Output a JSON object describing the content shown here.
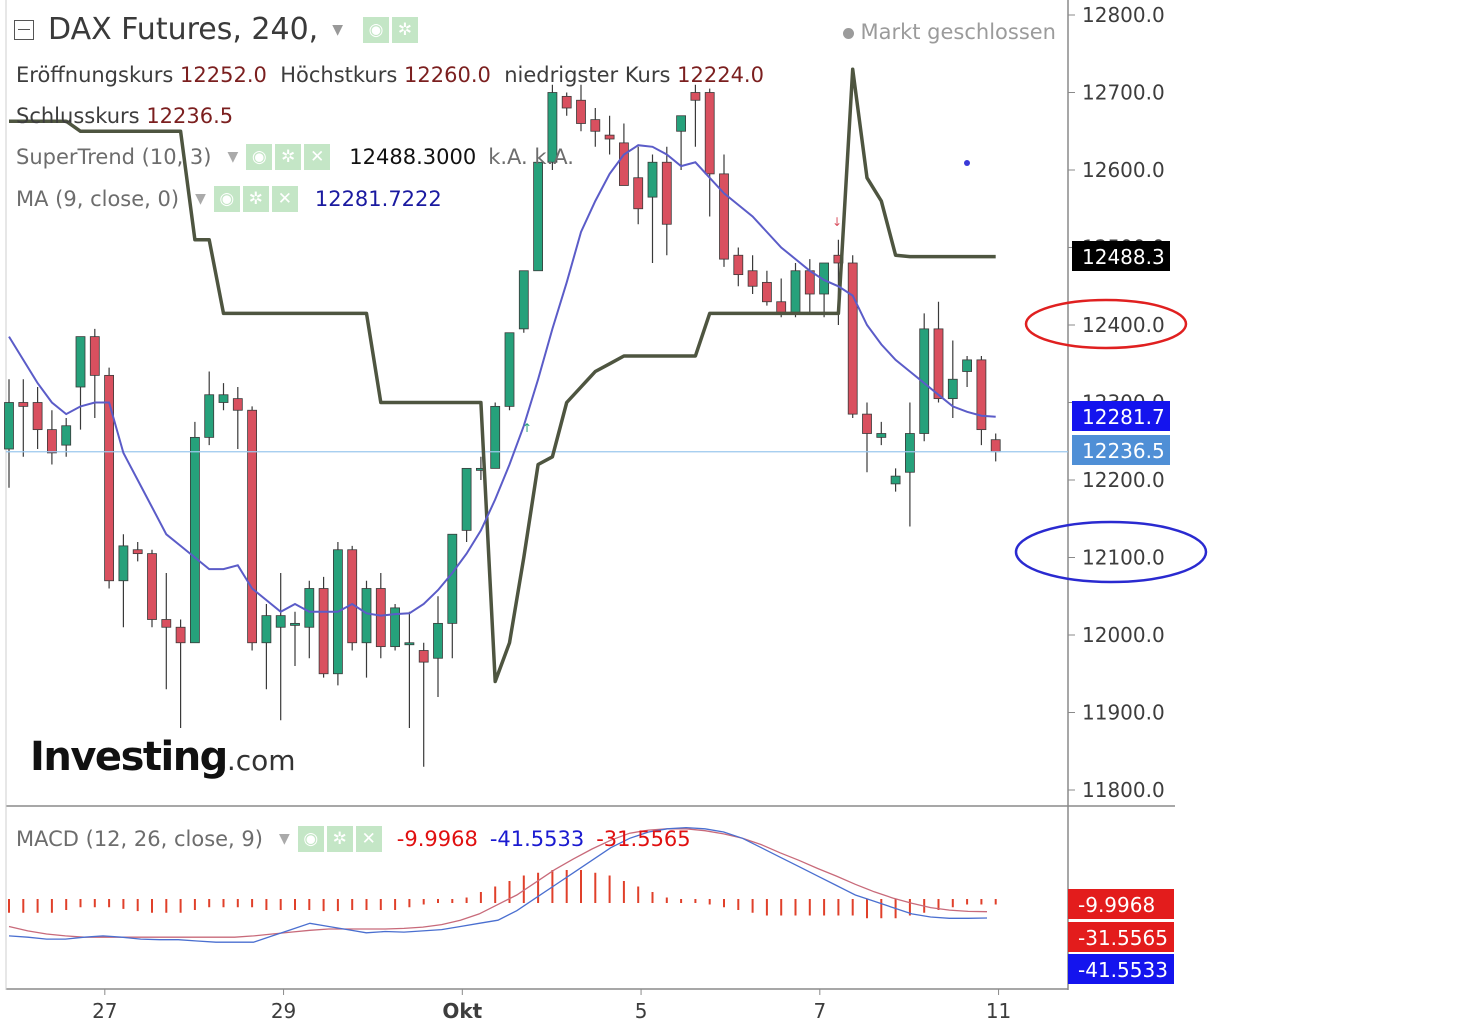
{
  "header": {
    "title": "DAX Futures, 240,",
    "status": "Markt geschlossen",
    "ohlc": [
      {
        "label": "Eröffnungskurs",
        "value": "12252.0"
      },
      {
        "label": "Höchstkurs",
        "value": "12260.0"
      },
      {
        "label": "niedrigster Kurs",
        "value": "12224.0"
      },
      {
        "label": "Schlusskurs",
        "value": "12236.5"
      }
    ],
    "supertrend": {
      "label": "SuperTrend (10, 3)",
      "value": "12488.3000",
      "extra": "k.A. k.A."
    },
    "ma": {
      "label": "MA (9, close, 0)",
      "value": "12281.7222"
    },
    "macd": {
      "label": "MACD (12, 26, close, 9)",
      "hist": "-9.9968",
      "macd": "-41.5533",
      "signal": "-31.5565"
    }
  },
  "logo": {
    "brand": "Investing",
    "suffix": ".com"
  },
  "colors": {
    "up": "#26a17b",
    "down": "#d9505f",
    "supertrend": "#4e5540",
    "ma": "#5b5cc8",
    "macd_line": "#4a6fd0",
    "signal_line": "#c86a7a",
    "hist": "#e0402a",
    "close_line": "#9cc8ee",
    "text": "#3d3d3d",
    "price_label_ma": "#1414ee",
    "price_label_close": "#4f8fd6"
  },
  "chart_data": {
    "type": "candlestick",
    "title": "DAX Futures, 240,",
    "ylim": [
      11750,
      12830
    ],
    "yticks": [
      "12800.0",
      "12700.0",
      "12600.0",
      "12500.0",
      "12400.0",
      "12300.0",
      "12200.0",
      "12100.0",
      "12000.0",
      "11900.0",
      "11800.0"
    ],
    "xticks": [
      {
        "label": "27",
        "index": 5
      },
      {
        "label": "29",
        "index": 15
      },
      {
        "label": "Okt",
        "index": 25
      },
      {
        "label": "5",
        "index": 35
      },
      {
        "label": "7",
        "index": 45
      },
      {
        "label": "11",
        "index": 55
      }
    ],
    "candles": [
      {
        "o": 12240,
        "h": 12330,
        "l": 12190,
        "c": 12300
      },
      {
        "o": 12300,
        "h": 12330,
        "l": 12230,
        "c": 12295
      },
      {
        "o": 12300,
        "h": 12320,
        "l": 12240,
        "c": 12265
      },
      {
        "o": 12265,
        "h": 12290,
        "l": 12220,
        "c": 12235
      },
      {
        "o": 12245,
        "h": 12280,
        "l": 12230,
        "c": 12270
      },
      {
        "o": 12320,
        "h": 12385,
        "l": 12265,
        "c": 12385
      },
      {
        "o": 12385,
        "h": 12395,
        "l": 12280,
        "c": 12335
      },
      {
        "o": 12335,
        "h": 12345,
        "l": 12060,
        "c": 12070
      },
      {
        "o": 12070,
        "h": 12130,
        "l": 12010,
        "c": 12115
      },
      {
        "o": 12110,
        "h": 12120,
        "l": 12095,
        "c": 12105
      },
      {
        "o": 12105,
        "h": 12110,
        "l": 12010,
        "c": 12020
      },
      {
        "o": 12020,
        "h": 12080,
        "l": 11930,
        "c": 12010
      },
      {
        "o": 12010,
        "h": 12020,
        "l": 11880,
        "c": 11990
      },
      {
        "o": 11990,
        "h": 12275,
        "l": 11990,
        "c": 12255
      },
      {
        "o": 12255,
        "h": 12340,
        "l": 12245,
        "c": 12310
      },
      {
        "o": 12300,
        "h": 12325,
        "l": 12290,
        "c": 12310
      },
      {
        "o": 12305,
        "h": 12320,
        "l": 12240,
        "c": 12290
      },
      {
        "o": 12290,
        "h": 12295,
        "l": 11980,
        "c": 11990
      },
      {
        "o": 11990,
        "h": 12040,
        "l": 11930,
        "c": 12025
      },
      {
        "o": 12010,
        "h": 12080,
        "l": 11890,
        "c": 12025
      },
      {
        "o": 12015,
        "h": 12030,
        "l": 11960,
        "c": 12015
      },
      {
        "o": 12010,
        "h": 12070,
        "l": 11970,
        "c": 12060
      },
      {
        "o": 12060,
        "h": 12075,
        "l": 11945,
        "c": 11950
      },
      {
        "o": 11950,
        "h": 12120,
        "l": 11935,
        "c": 12110
      },
      {
        "o": 12110,
        "h": 12115,
        "l": 11980,
        "c": 11990
      },
      {
        "o": 11990,
        "h": 12070,
        "l": 11945,
        "c": 12060
      },
      {
        "o": 12060,
        "h": 12080,
        "l": 11970,
        "c": 11985
      },
      {
        "o": 11985,
        "h": 12040,
        "l": 11980,
        "c": 12035
      },
      {
        "o": 11990,
        "h": 12030,
        "l": 11880,
        "c": 11990
      },
      {
        "o": 11980,
        "h": 11990,
        "l": 11830,
        "c": 11965
      },
      {
        "o": 11970,
        "h": 12050,
        "l": 11920,
        "c": 12015
      },
      {
        "o": 12015,
        "h": 12130,
        "l": 11970,
        "c": 12130
      },
      {
        "o": 12135,
        "h": 12215,
        "l": 12120,
        "c": 12215
      },
      {
        "o": 12215,
        "h": 12230,
        "l": 12200,
        "c": 12215
      },
      {
        "o": 12215,
        "h": 12300,
        "l": 12215,
        "c": 12295
      },
      {
        "o": 12295,
        "h": 12390,
        "l": 12290,
        "c": 12390
      },
      {
        "o": 12395,
        "h": 12470,
        "l": 12390,
        "c": 12470
      },
      {
        "o": 12470,
        "h": 12610,
        "l": 12470,
        "c": 12610
      },
      {
        "o": 12610,
        "h": 12710,
        "l": 12600,
        "c": 12700
      },
      {
        "o": 12695,
        "h": 12700,
        "l": 12670,
        "c": 12680
      },
      {
        "o": 12690,
        "h": 12710,
        "l": 12650,
        "c": 12660
      },
      {
        "o": 12665,
        "h": 12680,
        "l": 12630,
        "c": 12650
      },
      {
        "o": 12645,
        "h": 12670,
        "l": 12620,
        "c": 12640
      },
      {
        "o": 12635,
        "h": 12660,
        "l": 12580,
        "c": 12580
      },
      {
        "o": 12590,
        "h": 12630,
        "l": 12530,
        "c": 12550
      },
      {
        "o": 12565,
        "h": 12620,
        "l": 12480,
        "c": 12610
      },
      {
        "o": 12610,
        "h": 12630,
        "l": 12490,
        "c": 12530
      },
      {
        "o": 12650,
        "h": 12670,
        "l": 12600,
        "c": 12670
      },
      {
        "o": 12700,
        "h": 12710,
        "l": 12630,
        "c": 12690
      },
      {
        "o": 12700,
        "h": 12705,
        "l": 12540,
        "c": 12595
      },
      {
        "o": 12595,
        "h": 12620,
        "l": 12475,
        "c": 12485
      },
      {
        "o": 12490,
        "h": 12500,
        "l": 12450,
        "c": 12465
      },
      {
        "o": 12470,
        "h": 12490,
        "l": 12440,
        "c": 12450
      },
      {
        "o": 12455,
        "h": 12470,
        "l": 12425,
        "c": 12430
      },
      {
        "o": 12430,
        "h": 12460,
        "l": 12410,
        "c": 12415
      },
      {
        "o": 12415,
        "h": 12480,
        "l": 12410,
        "c": 12470
      },
      {
        "o": 12470,
        "h": 12485,
        "l": 12415,
        "c": 12440
      },
      {
        "o": 12440,
        "h": 12480,
        "l": 12410,
        "c": 12480
      },
      {
        "o": 12490,
        "h": 12510,
        "l": 12400,
        "c": 12480
      },
      {
        "o": 12480,
        "h": 12490,
        "l": 12280,
        "c": 12285
      },
      {
        "o": 12285,
        "h": 12300,
        "l": 12210,
        "c": 12260
      },
      {
        "o": 12255,
        "h": 12275,
        "l": 12245,
        "c": 12260
      },
      {
        "o": 12195,
        "h": 12215,
        "l": 12185,
        "c": 12205
      },
      {
        "o": 12210,
        "h": 12300,
        "l": 12140,
        "c": 12260
      },
      {
        "o": 12260,
        "h": 12415,
        "l": 12250,
        "c": 12395
      },
      {
        "o": 12395,
        "h": 12430,
        "l": 12300,
        "c": 12305
      },
      {
        "o": 12305,
        "h": 12380,
        "l": 12280,
        "c": 12330
      },
      {
        "o": 12340,
        "h": 12360,
        "l": 12320,
        "c": 12355
      },
      {
        "o": 12355,
        "h": 12360,
        "l": 12245,
        "c": 12265
      },
      {
        "o": 12252,
        "h": 12260,
        "l": 12224,
        "c": 12236.5
      }
    ],
    "supertrend": [
      12663,
      12663,
      12663,
      12663,
      12663,
      12650,
      12650,
      12650,
      12650,
      12650,
      12650,
      12650,
      12650,
      12510,
      12510,
      12415,
      12415,
      12415,
      12415,
      12415,
      12415,
      12415,
      12415,
      12415,
      12415,
      12415,
      12300,
      12300,
      12300,
      12300,
      12300,
      12300,
      12300,
      12300,
      11940,
      11990,
      12100,
      12220,
      12230,
      12300,
      12320,
      12340,
      12350,
      12360,
      12360,
      12360,
      12360,
      12360,
      12360,
      12415,
      12415,
      12415,
      12415,
      12415,
      12415,
      12415,
      12415,
      12415,
      12415,
      12730,
      12590,
      12560,
      12490,
      12488.3,
      12488.3,
      12488.3,
      12488.3,
      12488.3,
      12488.3,
      12488.3
    ],
    "ma": [
      12385,
      12355,
      12325,
      12300,
      12285,
      12295,
      12300,
      12300,
      12235,
      12200,
      12165,
      12130,
      12115,
      12100,
      12085,
      12085,
      12090,
      12060,
      12045,
      12030,
      12040,
      12030,
      12030,
      12030,
      12040,
      12028,
      12025,
      12027,
      12028,
      12040,
      12058,
      12080,
      12105,
      12135,
      12175,
      12220,
      12270,
      12330,
      12395,
      12455,
      12520,
      12560,
      12595,
      12620,
      12632,
      12630,
      12620,
      12605,
      12610,
      12590,
      12570,
      12555,
      12540,
      12520,
      12500,
      12485,
      12470,
      12458,
      12450,
      12438,
      12400,
      12375,
      12355,
      12340,
      12325,
      12310,
      12295,
      12288,
      12283,
      12281.7
    ],
    "macd_hist": [
      -25,
      -25,
      -25,
      -25,
      -20,
      -15,
      -15,
      -15,
      -18,
      -22,
      -25,
      -25,
      -25,
      -20,
      -15,
      -15,
      -15,
      -15,
      -20,
      -20,
      -20,
      -20,
      -22,
      -22,
      -20,
      -20,
      -20,
      -20,
      -15,
      -10,
      -5,
      0,
      10,
      20,
      30,
      40,
      50,
      55,
      60,
      60,
      60,
      55,
      50,
      40,
      30,
      20,
      10,
      0,
      -5,
      -10,
      -15,
      -20,
      -25,
      -30,
      -30,
      -30,
      -30,
      -30,
      -30,
      -30,
      -35,
      -35,
      -35,
      -30,
      -25,
      -20,
      -15,
      -10,
      -10,
      -10
    ],
    "macd_line": [
      -70,
      -72,
      -75,
      -75,
      -72,
      -70,
      -72,
      -75,
      -76,
      -76,
      -78,
      -80,
      -80,
      -80,
      -70,
      -60,
      -50,
      -55,
      -60,
      -65,
      -63,
      -64,
      -62,
      -60,
      -55,
      -50,
      -45,
      -30,
      -10,
      10,
      30,
      50,
      70,
      85,
      95,
      100,
      102,
      100,
      95,
      85,
      70,
      55,
      40,
      25,
      10,
      -5,
      -15,
      -25,
      -35,
      -40,
      -42,
      -42,
      -41.5
    ],
    "signal_line": [
      -55,
      -62,
      -67,
      -70,
      -72,
      -72,
      -72,
      -72,
      -72,
      -72,
      -72,
      -72,
      -72,
      -70,
      -67,
      -64,
      -61,
      -59,
      -59,
      -59,
      -59,
      -58,
      -56,
      -52,
      -45,
      -35,
      -20,
      -5,
      15,
      35,
      52,
      68,
      82,
      93,
      98,
      100,
      100,
      97,
      92,
      85,
      75,
      62,
      50,
      37,
      25,
      12,
      0,
      -10,
      -18,
      -25,
      -29,
      -31,
      -31.5565
    ]
  }
}
